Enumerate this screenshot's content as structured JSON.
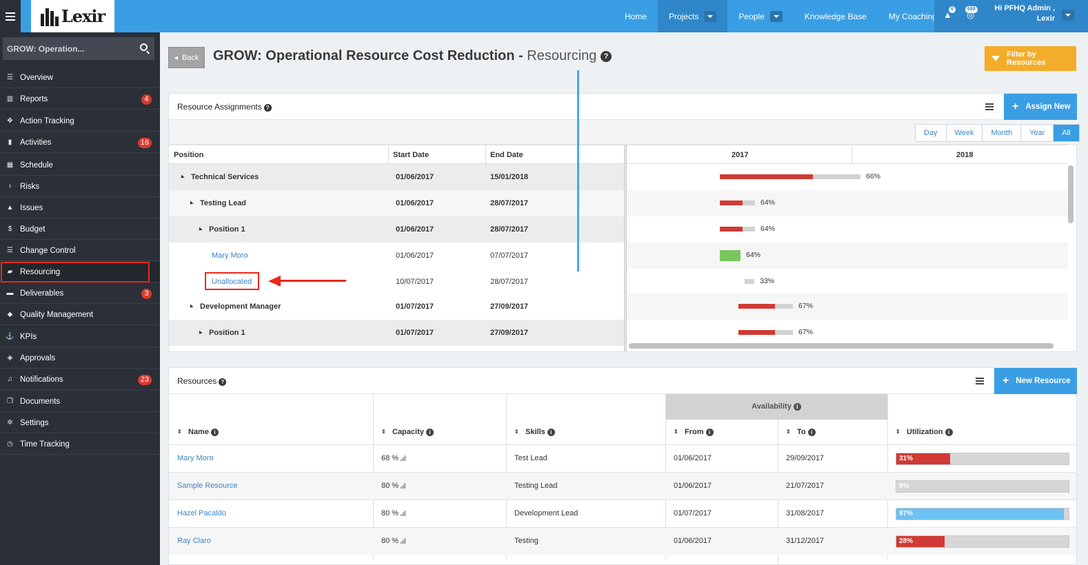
{
  "header": {
    "logo": "Lexir",
    "nav": [
      {
        "label": "Home",
        "has_caret": false,
        "active": false
      },
      {
        "label": "Projects",
        "has_caret": true,
        "active": true
      },
      {
        "label": "People",
        "has_caret": true,
        "active": false
      },
      {
        "label": "Knowledge Base",
        "has_caret": false,
        "active": false
      },
      {
        "label": "My Coaching",
        "has_caret": false,
        "active": false
      }
    ],
    "alert_count": "6",
    "notif_count": "689",
    "user_line1": "Hi PFHQ Admin ,",
    "user_line2": "Lexir"
  },
  "sidebar": {
    "search_value": "GROW: Operation...",
    "items": [
      {
        "label": "Overview",
        "icon": "list-icon",
        "glyph": "☰",
        "badge": ""
      },
      {
        "label": "Reports",
        "icon": "bar-chart-icon",
        "glyph": "▥",
        "badge": "4"
      },
      {
        "label": "Action Tracking",
        "icon": "move-icon",
        "glyph": "✥",
        "badge": ""
      },
      {
        "label": "Activities",
        "icon": "bookmark-icon",
        "glyph": "▮",
        "badge": "16"
      },
      {
        "label": "Schedule",
        "icon": "calendar-icon",
        "glyph": "▦",
        "badge": ""
      },
      {
        "label": "Risks",
        "icon": "lightbulb-icon",
        "glyph": "♁",
        "badge": ""
      },
      {
        "label": "Issues",
        "icon": "warning-icon",
        "glyph": "▲",
        "badge": ""
      },
      {
        "label": "Budget",
        "icon": "dollar-icon",
        "glyph": "$",
        "badge": ""
      },
      {
        "label": "Change Control",
        "icon": "list-icon",
        "glyph": "☰",
        "badge": ""
      },
      {
        "label": "Resourcing",
        "icon": "folder-open-icon",
        "glyph": "▰",
        "badge": "",
        "active": true
      },
      {
        "label": "Deliverables",
        "icon": "truck-icon",
        "glyph": "▬",
        "badge": "3"
      },
      {
        "label": "Quality Management",
        "icon": "tag-icon",
        "glyph": "◆",
        "badge": ""
      },
      {
        "label": "KPIs",
        "icon": "anchor-icon",
        "glyph": "⚓",
        "badge": ""
      },
      {
        "label": "Approvals",
        "icon": "tag-icon",
        "glyph": "◈",
        "badge": ""
      },
      {
        "label": "Notifications",
        "icon": "bell-icon",
        "glyph": "♫",
        "badge": "23"
      },
      {
        "label": "Documents",
        "icon": "documents-icon",
        "glyph": "❐",
        "badge": ""
      },
      {
        "label": "Settings",
        "icon": "gears-icon",
        "glyph": "✲",
        "badge": ""
      },
      {
        "label": "Time Tracking",
        "icon": "clock-icon",
        "glyph": "◷",
        "badge": ""
      }
    ]
  },
  "page": {
    "back_label": "Back",
    "title_bold": "GROW: Operational Resource Cost Reduction -",
    "title_sub": "Resourcing",
    "filter_label": "Filter by Resources"
  },
  "assignments": {
    "title": "Resource Assignments",
    "assign_label": "Assign New",
    "views": [
      "Day",
      "Week",
      "Month",
      "Year",
      "All"
    ],
    "active_view": "All",
    "columns": [
      "Position",
      "Start Date",
      "End Date"
    ],
    "years": [
      "2017",
      "2018"
    ],
    "rows": [
      {
        "name": "Technical Services",
        "start": "01/06/2017",
        "end": "15/01/2018",
        "level": 0,
        "bold": true,
        "link": false,
        "pct": "66%",
        "util": 0.66
      },
      {
        "name": "Testing Lead",
        "start": "01/06/2017",
        "end": "28/07/2017",
        "level": 1,
        "bold": true,
        "link": false,
        "pct": "64%",
        "util": 0.64
      },
      {
        "name": "Position 1",
        "start": "01/06/2017",
        "end": "28/07/2017",
        "level": 2,
        "bold": true,
        "link": false,
        "pct": "64%",
        "util": 0.64
      },
      {
        "name": "Mary Moro",
        "start": "01/06/2017",
        "end": "07/07/2017",
        "level": 3,
        "bold": false,
        "link": true,
        "pct": "64%",
        "util": 0.64
      },
      {
        "name": "Unallocated",
        "start": "10/07/2017",
        "end": "28/07/2017",
        "level": 3,
        "bold": false,
        "link": true,
        "pct": "33%",
        "util": 0.33
      },
      {
        "name": "Development Manager",
        "start": "01/07/2017",
        "end": "27/09/2017",
        "level": 1,
        "bold": true,
        "link": false,
        "pct": "67%",
        "util": 0.67
      },
      {
        "name": "Position 1",
        "start": "01/07/2017",
        "end": "27/09/2017",
        "level": 2,
        "bold": true,
        "link": false,
        "pct": "67%",
        "util": 0.67
      }
    ]
  },
  "resources": {
    "title": "Resources",
    "new_label": "New Resource",
    "availability_label": "Availability",
    "columns": [
      "Name",
      "Capacity",
      "Skills",
      "From",
      "To",
      "Utilization"
    ],
    "rows": [
      {
        "name": "Mary Moro",
        "capacity": "68 %",
        "skills": "Test Lead",
        "from": "01/06/2017",
        "to": "29/09/2017",
        "util_label": "31%",
        "util": 0.31,
        "color": "#d13a35"
      },
      {
        "name": "Sample Resource",
        "capacity": "80 %",
        "skills": "Testing Lead",
        "from": "01/06/2017",
        "to": "21/07/2017",
        "util_label": "0%",
        "util": 0.0,
        "color": "#d13a35"
      },
      {
        "name": "Hazel Pacaldo",
        "capacity": "80 %",
        "skills": "Development Lead",
        "from": "01/07/2017",
        "to": "31/08/2017",
        "util_label": "97%",
        "util": 0.97,
        "color": "#6cc2f2"
      },
      {
        "name": "Ray Claro",
        "capacity": "80 %",
        "skills": "Testing",
        "from": "01/06/2017",
        "to": "31/12/2017",
        "util_label": "28%",
        "util": 0.28,
        "color": "#d13a35"
      }
    ]
  }
}
